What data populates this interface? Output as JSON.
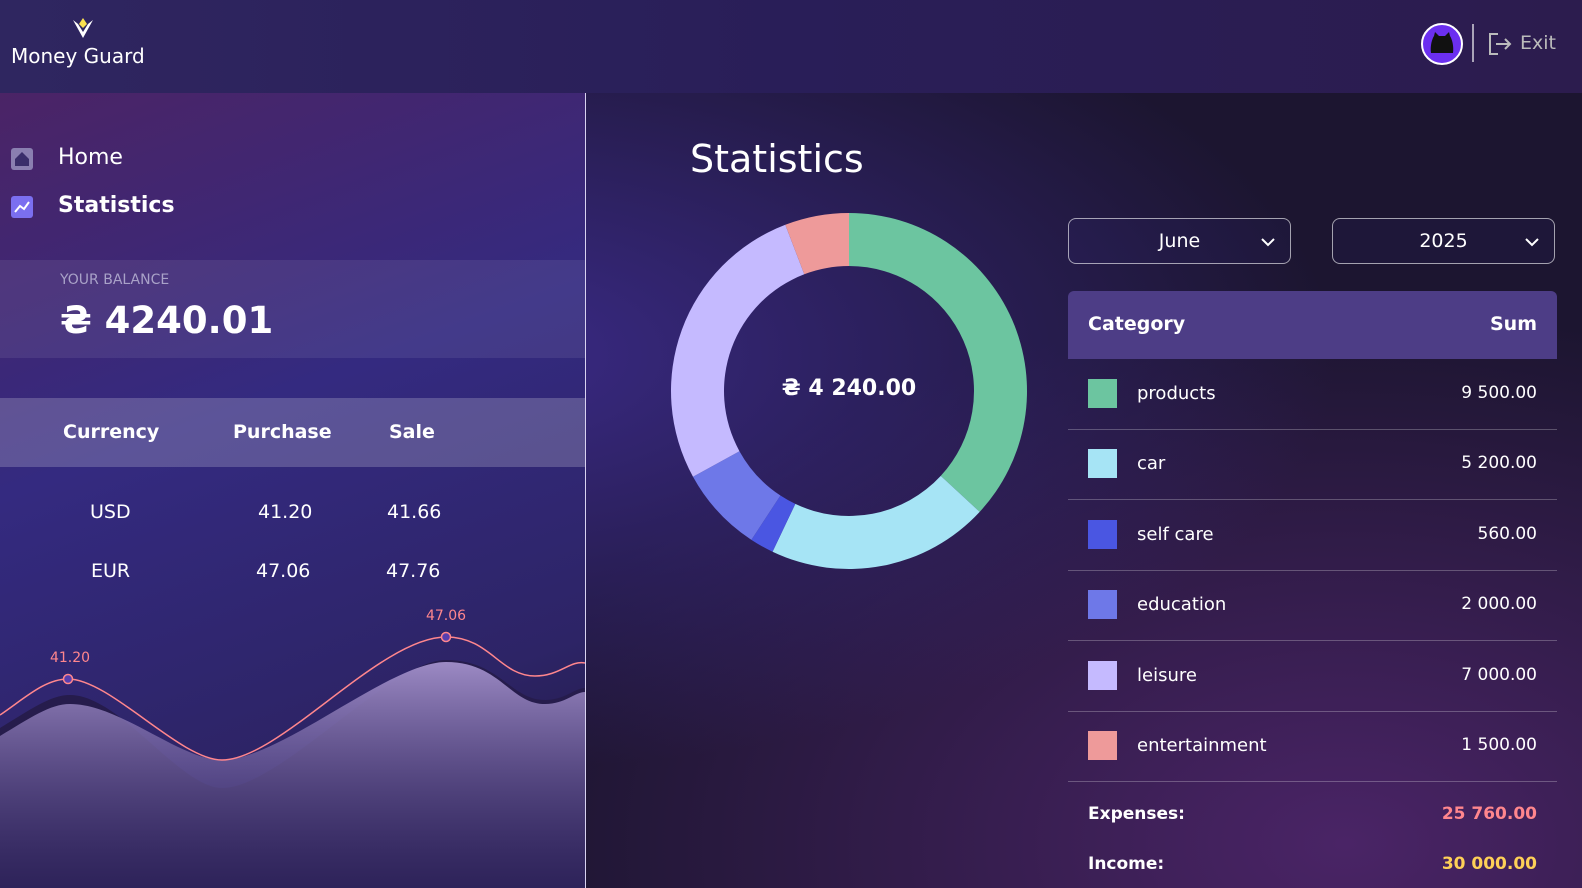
{
  "header": {
    "logo": "Money Guard",
    "exit": "Exit"
  },
  "nav": [
    {
      "label": "Home"
    },
    {
      "label": "Statistics"
    }
  ],
  "balance": {
    "title": "YOUR BALANCE",
    "amount": "₴ 4240.01"
  },
  "rates": {
    "headers": [
      "Currency",
      "Purchase",
      "Sale"
    ],
    "rows": [
      {
        "currency": "USD",
        "purchase": {
          "value": 41.2,
          "label": "41.20"
        },
        "sale": "41.66"
      },
      {
        "currency": "EUR",
        "purchase": {
          "value": 47.06,
          "label": "47.06"
        },
        "sale": "47.76"
      }
    ]
  },
  "statistics": {
    "title": "Statistics",
    "total": "₴ 4 240.00",
    "month": "June",
    "year": "2025",
    "headers": [
      "Category",
      "Sum"
    ],
    "categories": [
      {
        "name": "products",
        "color": "#6cc5a0",
        "value": 9500,
        "label": "9 500.00"
      },
      {
        "name": "car",
        "color": "#a6e4f5",
        "value": 5200,
        "label": "5 200.00"
      },
      {
        "name": "self care",
        "color": "#4a56e2",
        "value": 560,
        "label": "560.00"
      },
      {
        "name": "education",
        "color": "#6e78e8",
        "value": 2000,
        "label": "2 000.00"
      },
      {
        "name": "leisure",
        "color": "#c5baff",
        "value": 7000,
        "label": "7 000.00"
      },
      {
        "name": "entertainment",
        "color": "#ee9a9a",
        "value": 1500,
        "label": "1 500.00"
      }
    ],
    "expenses": {
      "label": "Expenses:",
      "amount": "25 760.00"
    },
    "income": {
      "label": "Income:",
      "amount": "30 000.00"
    }
  }
}
